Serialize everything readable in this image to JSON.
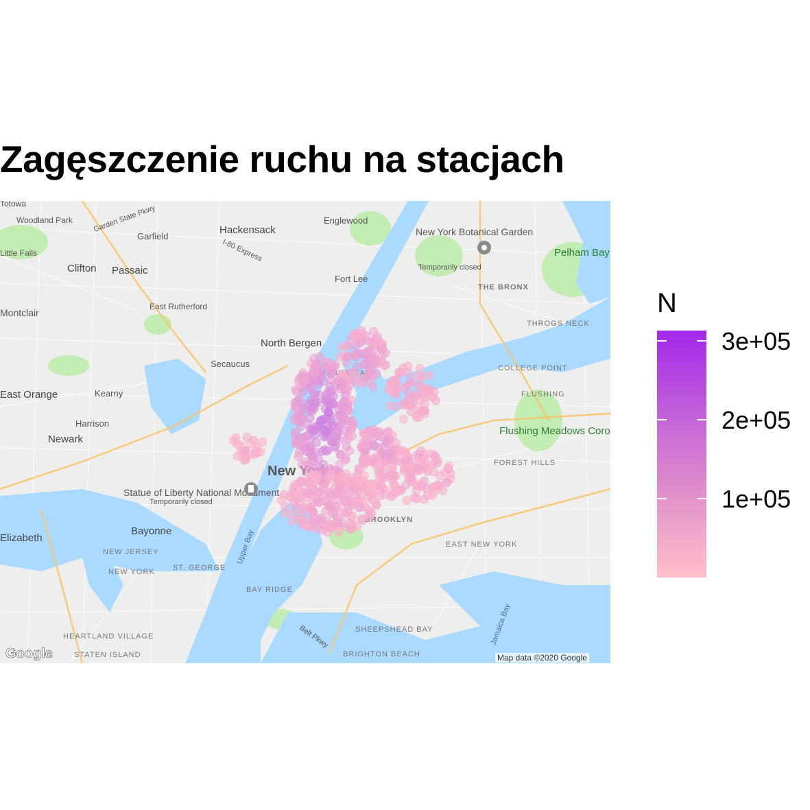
{
  "title": "Zagęszczenie ruchu na stacjach",
  "legend": {
    "title": "N",
    "ticks": [
      {
        "label": "3e+05",
        "value": 300000
      },
      {
        "label": "2e+05",
        "value": 200000
      },
      {
        "label": "1e+05",
        "value": 100000
      }
    ],
    "color_low": "#ffc0cb",
    "color_high": "#a020f0"
  },
  "map": {
    "provider_logo": "Google",
    "attribution": "Map data ©2020 Google",
    "labels": {
      "new_york": "New York",
      "manhattan": "MANHATTAN",
      "brooklyn": "BROOKLYN",
      "the_bronx": "THE BRONX",
      "newark": "Newark",
      "hackensack": "Hackensack",
      "englewood": "Englewood",
      "clifton": "Clifton",
      "passaic": "Passaic",
      "garfield": "Garfield",
      "fort_lee": "Fort Lee",
      "north_bergen": "North Bergen",
      "secaucus": "Secaucus",
      "kearny": "Kearny",
      "harrison": "Harrison",
      "east_orange": "East Orange",
      "montclair": "Montclair",
      "bayonne": "Bayonne",
      "elizabeth": "Elizabeth",
      "east_rutherford": "East Rutherford",
      "woodland_park": "Woodland Park",
      "little_falls": "Little Falls",
      "totowa": "Totowa",
      "statue_of_liberty": "Statue of Liberty National Monument",
      "temporarily_closed": "Temporarily closed",
      "ny_botanical_garden": "New York Botanical Garden",
      "pelham_bay_park": "Pelham Bay Park",
      "flushing_meadows": "Flushing Meadows Corona Park",
      "flushing": "FLUSHING",
      "college_point": "COLLEGE POINT",
      "throgs_neck": "THROGS NECK",
      "forest_hills": "FOREST HILLS",
      "east_new_york": "EAST NEW YORK",
      "new_jersey": "NEW JERSEY",
      "new_york_state": "NEW YORK",
      "st_george": "ST. GEORGE",
      "bay_ridge": "BAY RIDGE",
      "sheepshead_bay": "SHEEPSHEAD BAY",
      "brighton_beach": "BRIGHTON BEACH",
      "heartland_village": "HEARTLAND VILLAGE",
      "staten_island": "STATEN ISLAND",
      "upper_bay": "Upper Bay",
      "jamaica_bay": "Jamaica Bay",
      "belt_pkwy": "Belt Pkwy",
      "i80_express": "I-80 Express",
      "garden_state_pkwy": "Garden State Pkwy"
    }
  },
  "colors": {
    "water": "#aadaff",
    "land": "#f1f1ef",
    "park": "#c3ecb2",
    "point_pink": "#ffb6c8",
    "point_purple": "#c77be6"
  }
}
